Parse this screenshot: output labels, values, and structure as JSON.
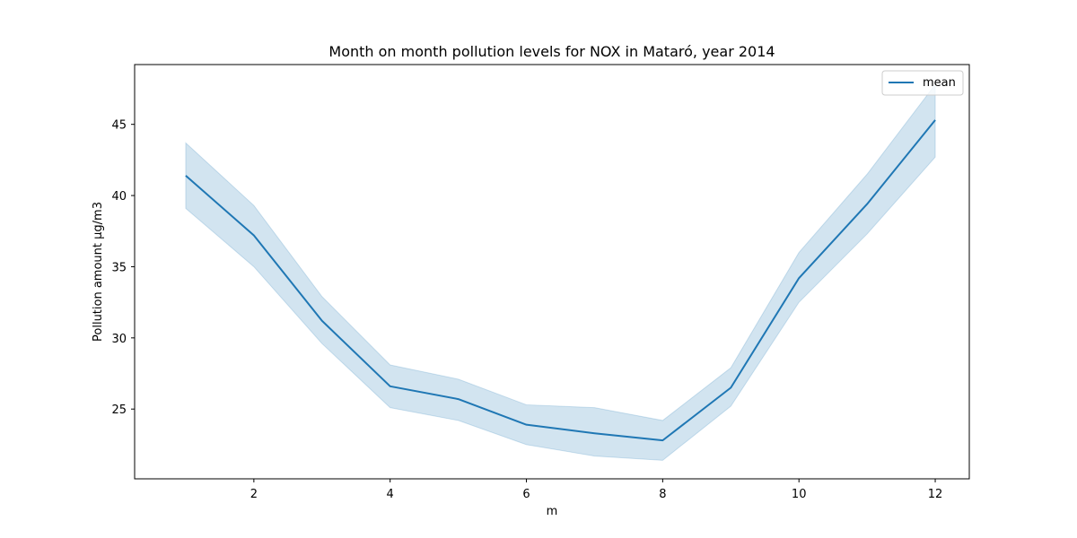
{
  "chart_data": {
    "type": "line",
    "title": "Month on month pollution levels for NOX in Mataró, year 2014",
    "xlabel": "m",
    "ylabel": "Pollution amount µg/m3",
    "x": [
      1,
      2,
      3,
      4,
      5,
      6,
      7,
      8,
      9,
      10,
      11,
      12
    ],
    "xlim": [
      0.25,
      12.5
    ],
    "ylim": [
      20.1,
      49.2
    ],
    "xticks": [
      2,
      4,
      6,
      8,
      10,
      12
    ],
    "yticks": [
      25,
      30,
      35,
      40,
      45
    ],
    "grid": false,
    "legend": "top-right",
    "series": [
      {
        "name": "mean",
        "color": "#1f77b4",
        "band_color": "#1f77b4",
        "values": [
          41.4,
          37.2,
          31.2,
          26.6,
          25.7,
          23.9,
          23.3,
          22.8,
          26.5,
          34.2,
          39.4,
          45.3
        ],
        "lower": [
          39.1,
          35.0,
          29.6,
          25.1,
          24.2,
          22.5,
          21.7,
          21.4,
          25.2,
          32.5,
          37.3,
          42.7
        ],
        "upper": [
          43.7,
          39.3,
          32.9,
          28.1,
          27.1,
          25.3,
          25.1,
          24.2,
          27.9,
          36.0,
          41.5,
          47.8
        ]
      }
    ]
  }
}
